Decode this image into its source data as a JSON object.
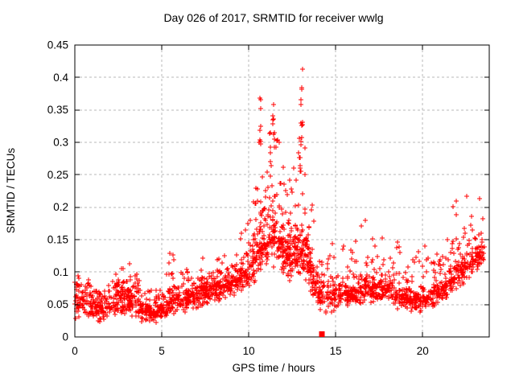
{
  "title": "Day 026 of 2017, SRMTID for receiver wwlg",
  "chart_data": {
    "type": "scatter",
    "title": "Day 026 of 2017, SRMTID for receiver wwlg",
    "xlabel": "GPS time / hours",
    "ylabel": "SRMTID / TECUs",
    "xlim": [
      0,
      23.83
    ],
    "ylim": [
      0,
      0.45
    ],
    "xticks": {
      "values": [
        0,
        5,
        10,
        15,
        20
      ],
      "labels": [
        "0",
        "5",
        "10",
        "15",
        "20"
      ]
    },
    "yticks": {
      "values": [
        0,
        0.05,
        0.1,
        0.15,
        0.2,
        0.25,
        0.3,
        0.35,
        0.4,
        0.45
      ],
      "labels": [
        "0",
        "0.05",
        "0.1",
        "0.15",
        "0.2",
        "0.25",
        "0.3",
        "0.35",
        "0.4",
        "0.45"
      ]
    },
    "grid": true,
    "grid_color": "#b8b8b8",
    "marker": "plus",
    "marker_color": "#ff0000",
    "max_value": 0.413,
    "max_value_hour": 13.0,
    "special_points": [
      {
        "x": 14.2,
        "y": 0,
        "marker": "filled-square",
        "color": "#ff0000"
      }
    ],
    "scatter_model": {
      "comment_role": "piecewise envelope of observed scatter band: [hour, min, typical_top, max, density_weight]",
      "point_count": 2300,
      "seed": 20170126,
      "envelope": [
        [
          0.0,
          0.025,
          0.075,
          0.095,
          1.0
        ],
        [
          0.5,
          0.03,
          0.08,
          0.105,
          1.0
        ],
        [
          1.0,
          0.025,
          0.07,
          0.09,
          1.0
        ],
        [
          1.5,
          0.02,
          0.065,
          0.085,
          1.0
        ],
        [
          2.0,
          0.03,
          0.07,
          0.09,
          1.0
        ],
        [
          2.5,
          0.03,
          0.08,
          0.115,
          1.0
        ],
        [
          3.0,
          0.03,
          0.085,
          0.12,
          1.0
        ],
        [
          3.5,
          0.025,
          0.07,
          0.1,
          1.0
        ],
        [
          4.0,
          0.02,
          0.06,
          0.08,
          1.0
        ],
        [
          4.5,
          0.02,
          0.055,
          0.075,
          1.0
        ],
        [
          5.0,
          0.025,
          0.06,
          0.085,
          1.0
        ],
        [
          5.5,
          0.03,
          0.07,
          0.14,
          1.0
        ],
        [
          6.0,
          0.03,
          0.075,
          0.105,
          1.0
        ],
        [
          6.5,
          0.04,
          0.085,
          0.12,
          1.0
        ],
        [
          7.0,
          0.04,
          0.09,
          0.135,
          1.0
        ],
        [
          7.5,
          0.05,
          0.09,
          0.125,
          1.0
        ],
        [
          8.0,
          0.05,
          0.095,
          0.13,
          1.0
        ],
        [
          8.5,
          0.055,
          0.1,
          0.15,
          1.0
        ],
        [
          9.0,
          0.06,
          0.105,
          0.15,
          1.1
        ],
        [
          9.5,
          0.07,
          0.115,
          0.165,
          1.1
        ],
        [
          10.0,
          0.07,
          0.13,
          0.19,
          1.2
        ],
        [
          10.4,
          0.08,
          0.16,
          0.28,
          1.4
        ],
        [
          10.7,
          0.09,
          0.19,
          0.34,
          1.5
        ],
        [
          11.0,
          0.09,
          0.2,
          0.31,
          1.5
        ],
        [
          11.3,
          0.1,
          0.22,
          0.36,
          1.5
        ],
        [
          11.6,
          0.1,
          0.21,
          0.34,
          1.5
        ],
        [
          12.0,
          0.09,
          0.18,
          0.27,
          1.5
        ],
        [
          12.5,
          0.08,
          0.16,
          0.26,
          1.4
        ],
        [
          13.0,
          0.09,
          0.19,
          0.34,
          1.5
        ],
        [
          13.3,
          0.08,
          0.17,
          0.3,
          1.4
        ],
        [
          13.6,
          0.06,
          0.13,
          0.22,
          1.2
        ],
        [
          14.0,
          0.04,
          0.1,
          0.18,
          1.0
        ],
        [
          14.5,
          0.03,
          0.085,
          0.14,
          0.9
        ],
        [
          15.0,
          0.04,
          0.09,
          0.155,
          1.0
        ],
        [
          15.5,
          0.05,
          0.09,
          0.16,
          1.0
        ],
        [
          16.0,
          0.04,
          0.085,
          0.155,
          1.0
        ],
        [
          16.7,
          0.05,
          0.095,
          0.185,
          1.1
        ],
        [
          17.0,
          0.05,
          0.09,
          0.15,
          1.0
        ],
        [
          17.5,
          0.05,
          0.095,
          0.16,
          1.0
        ],
        [
          18.0,
          0.05,
          0.095,
          0.17,
          1.1
        ],
        [
          18.5,
          0.04,
          0.085,
          0.155,
          1.0
        ],
        [
          19.0,
          0.04,
          0.08,
          0.14,
          1.0
        ],
        [
          19.5,
          0.035,
          0.075,
          0.13,
          1.0
        ],
        [
          20.0,
          0.04,
          0.08,
          0.19,
          1.0
        ],
        [
          20.5,
          0.04,
          0.08,
          0.12,
          1.0
        ],
        [
          21.0,
          0.05,
          0.09,
          0.15,
          1.0
        ],
        [
          21.5,
          0.06,
          0.1,
          0.18,
          1.1
        ],
        [
          22.0,
          0.07,
          0.12,
          0.235,
          1.2
        ],
        [
          22.5,
          0.08,
          0.14,
          0.225,
          1.2
        ],
        [
          23.0,
          0.09,
          0.15,
          0.215,
          1.2
        ],
        [
          23.3,
          0.1,
          0.15,
          0.22,
          1.1
        ],
        [
          23.55,
          0.11,
          0.145,
          0.175,
          0.9
        ]
      ],
      "spikes": [
        [
          10.65,
          0.29,
          0.39,
          8
        ],
        [
          11.43,
          0.3,
          0.358,
          9
        ],
        [
          11.2,
          0.27,
          0.335,
          5
        ],
        [
          13.05,
          0.3,
          0.413,
          10
        ],
        [
          12.95,
          0.22,
          0.3,
          6
        ]
      ]
    }
  }
}
